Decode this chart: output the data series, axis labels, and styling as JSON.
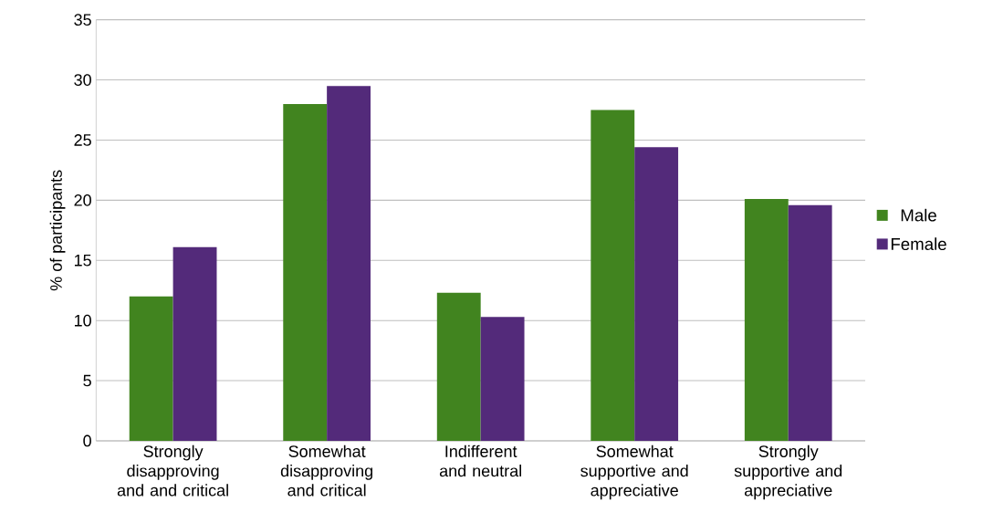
{
  "chart_data": {
    "type": "bar",
    "ylabel": "% of participants",
    "categories": [
      "Strongly disapproving and and critical",
      "Somewhat disapproving and critical",
      "Indifferent and neutral",
      "Somewhat supportive and appreciative",
      "Strongly supportive and appreciative"
    ],
    "series": [
      {
        "name": "Male",
        "color": "#41841f",
        "values": [
          12.0,
          28.0,
          12.3,
          27.5,
          20.1
        ]
      },
      {
        "name": "Female",
        "color": "#532a7a",
        "values": [
          16.1,
          29.5,
          10.3,
          24.4,
          19.6
        ]
      }
    ],
    "ylim": [
      0,
      35
    ],
    "yticks": [
      0,
      5,
      10,
      15,
      20,
      25,
      30,
      35
    ],
    "grid": "y",
    "legend": "right"
  }
}
